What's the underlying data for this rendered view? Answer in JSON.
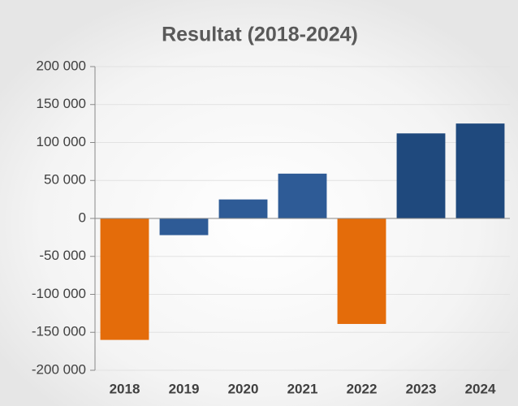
{
  "chart_data": {
    "type": "bar",
    "title": "Resultat (2018-2024)",
    "categories": [
      "2018",
      "2019",
      "2020",
      "2021",
      "2022",
      "2023",
      "2024"
    ],
    "values": [
      -160000,
      -22000,
      25000,
      59000,
      -139000,
      112000,
      125000
    ],
    "colors": [
      "#e46c0a",
      "#2e5b96",
      "#2e5b96",
      "#2e5b96",
      "#e46c0a",
      "#1f497d",
      "#1f497d"
    ],
    "ylim": [
      -200000,
      200000
    ],
    "yticks": [
      {
        "value": -200000,
        "label": "-200 000"
      },
      {
        "value": -150000,
        "label": "-150 000"
      },
      {
        "value": -100000,
        "label": "-100 000"
      },
      {
        "value": -50000,
        "label": "-50 000"
      },
      0,
      {
        "value": 50000,
        "label": "50 000"
      },
      {
        "value": 100000,
        "label": "100 000"
      },
      {
        "value": 150000,
        "label": "150 000"
      },
      {
        "value": 200000,
        "label": "200 000"
      }
    ],
    "grid": true
  }
}
